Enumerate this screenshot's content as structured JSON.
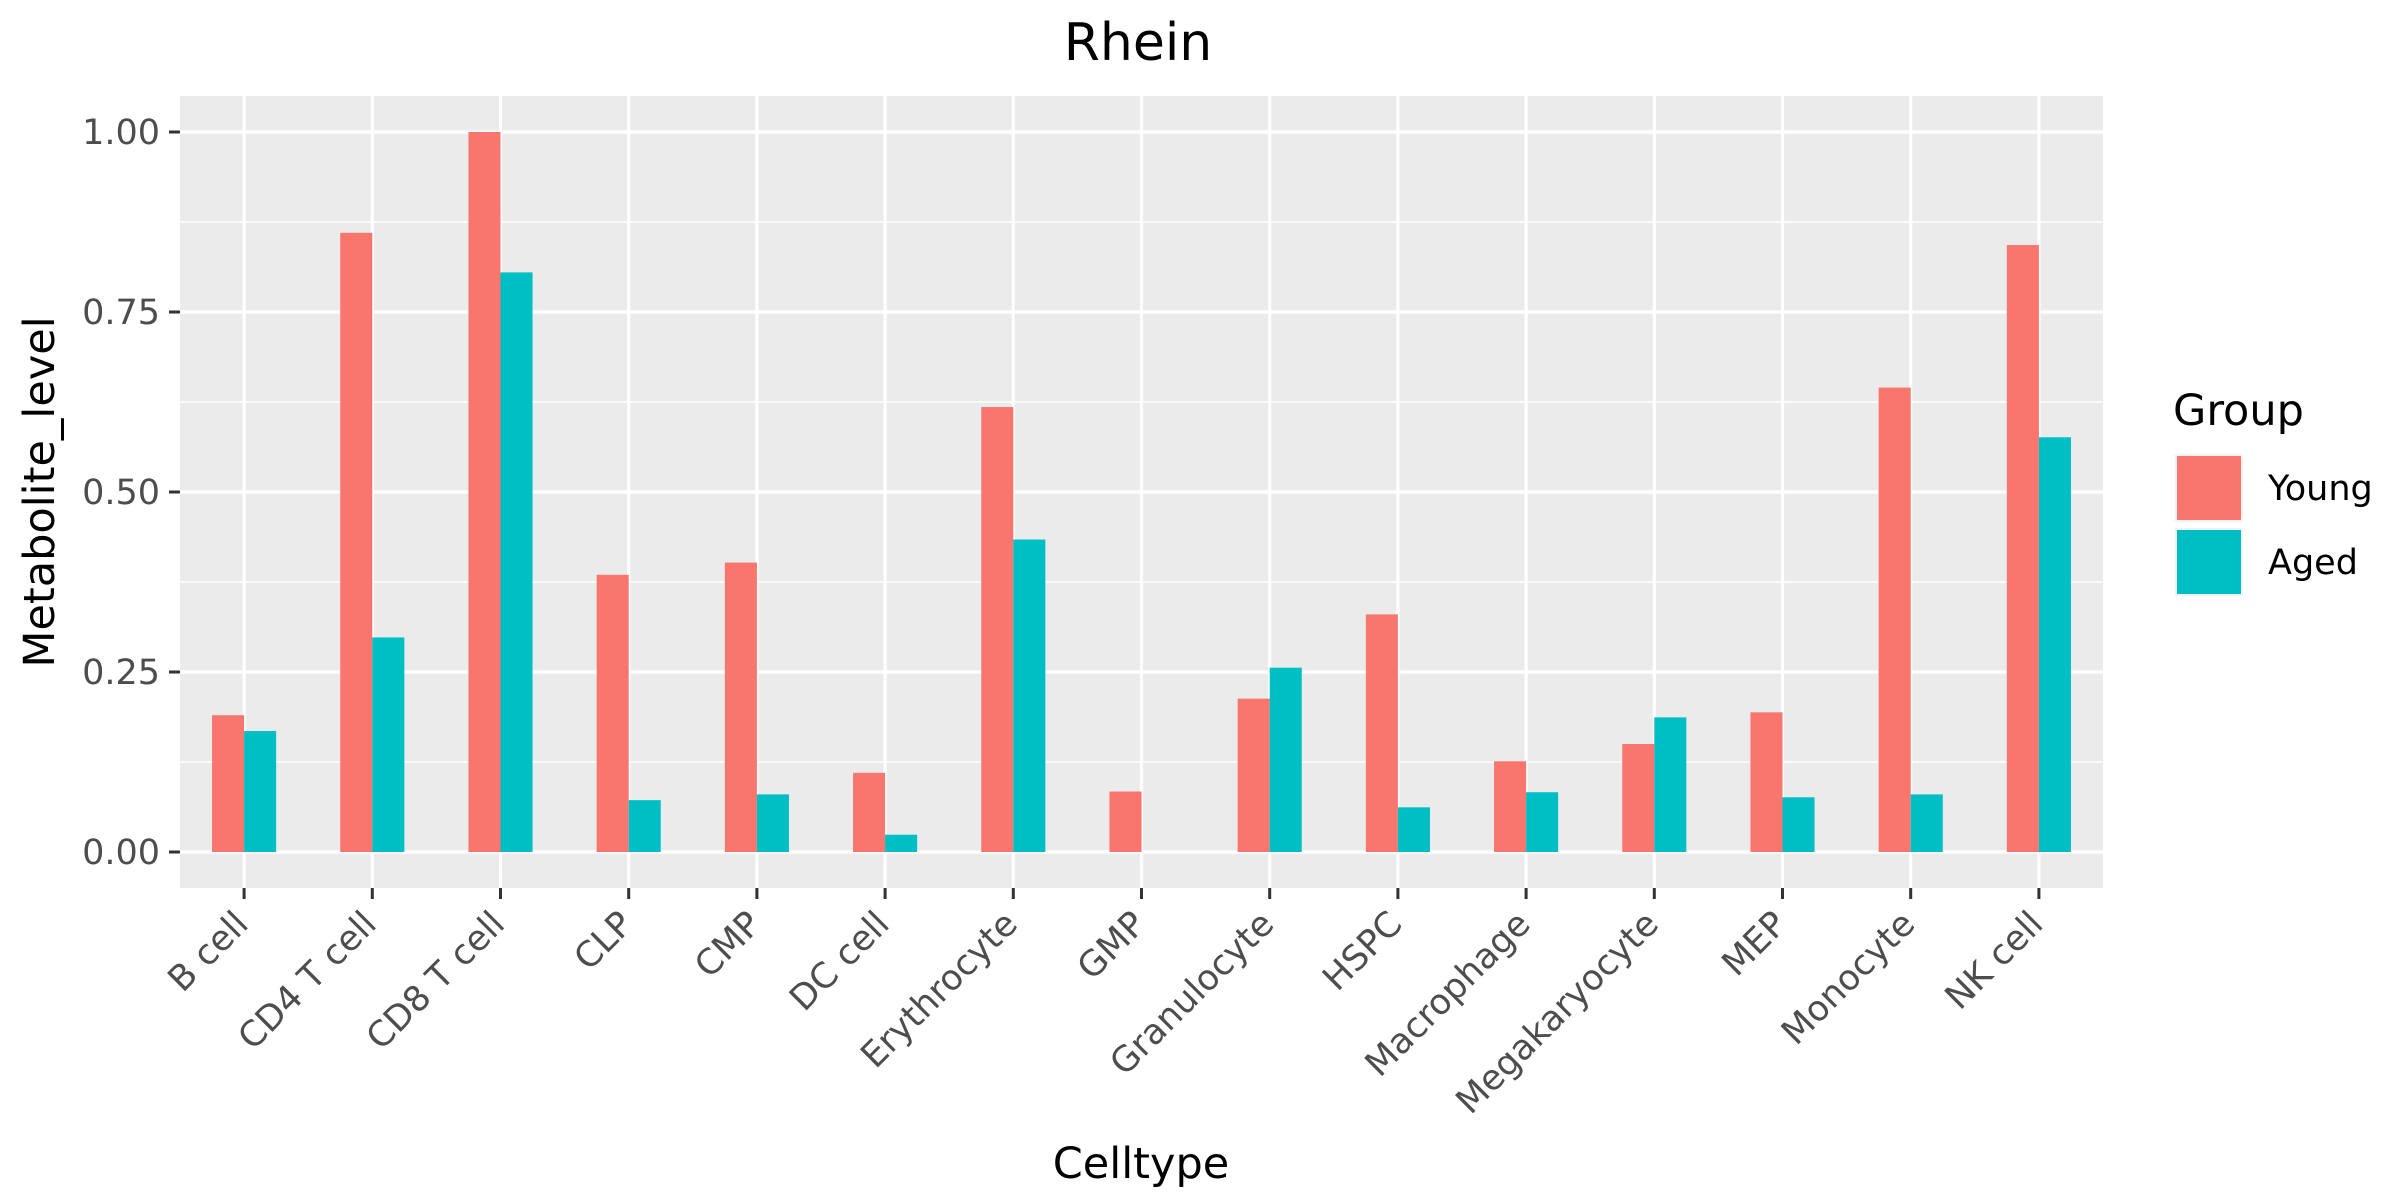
{
  "chart_data": {
    "type": "bar",
    "title": "Rhein",
    "xlabel": "Celltype",
    "ylabel": "Metabolite_level",
    "ylim": [
      -0.05,
      1.05
    ],
    "yticks": [
      0.0,
      0.25,
      0.5,
      0.75,
      1.0
    ],
    "ytick_labels": [
      "0.00",
      "0.25",
      "0.50",
      "0.75",
      "1.00"
    ],
    "grid": true,
    "legend_position": "right",
    "legend_title": "Group",
    "categories": [
      "B cell",
      "CD4 T cell",
      "CD8 T cell",
      "CLP",
      "CMP",
      "DC cell",
      "Erythrocyte",
      "GMP",
      "Granulocyte",
      "HSPC",
      "Macrophage",
      "Megakaryocyte",
      "MEP",
      "Monocyte",
      "NK cell"
    ],
    "series": [
      {
        "name": "Young",
        "color": "#F8766D",
        "values": [
          0.19,
          0.86,
          1.0,
          0.385,
          0.402,
          0.11,
          0.618,
          0.084,
          0.213,
          0.33,
          0.126,
          0.15,
          0.194,
          0.645,
          0.843
        ]
      },
      {
        "name": "Aged",
        "color": "#00BFC4",
        "values": [
          0.168,
          0.298,
          0.805,
          0.072,
          0.08,
          0.024,
          0.434,
          0.0,
          0.256,
          0.062,
          0.083,
          0.187,
          0.076,
          0.08,
          0.576
        ]
      }
    ]
  }
}
